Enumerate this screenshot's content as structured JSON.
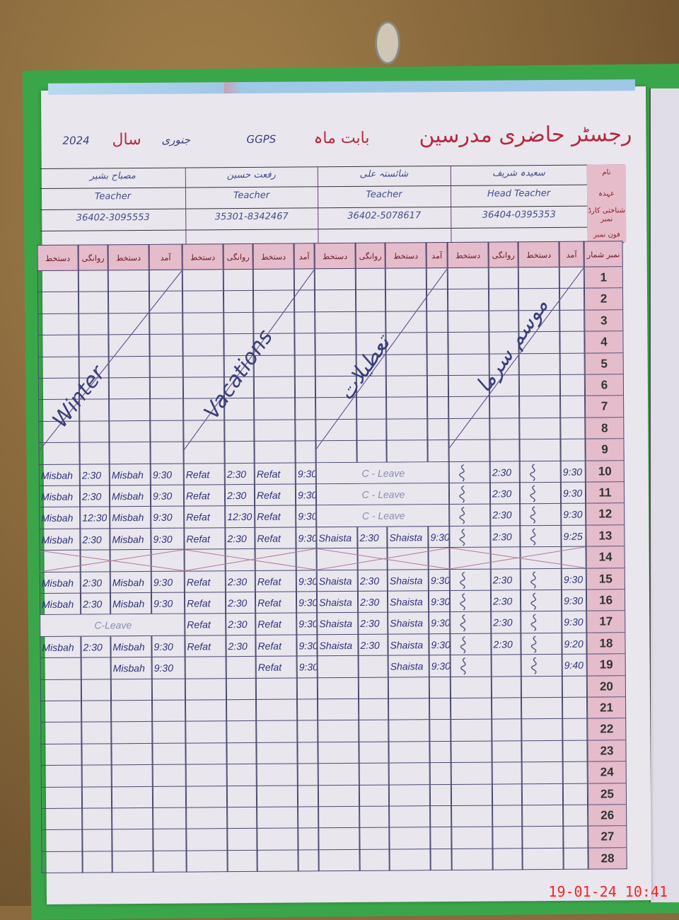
{
  "header": {
    "title": "رجسٹر حاضری مدرسین",
    "month_label": "بابت ماہ",
    "month": "جنوری",
    "year_label": "سال",
    "year": "2024",
    "school": "GGPS"
  },
  "info_labels": [
    "نام",
    "عہدہ",
    "شناختی کارڈ نمبر",
    "فون نمبر"
  ],
  "teachers": [
    {
      "name": "مصباح بشیر",
      "designation": "Teacher",
      "cnic": "36402-3095553"
    },
    {
      "name": "رفعت حسین",
      "designation": "Teacher",
      "cnic": "35301-8342467"
    },
    {
      "name": "شائستہ علی",
      "designation": "Teacher",
      "cnic": "36402-5078617"
    },
    {
      "name": "سعیدہ شریف",
      "designation": "Head Teacher",
      "cnic": "36404-0395353"
    }
  ],
  "column_headers": [
    "دستخط",
    "روانگی",
    "دستخط",
    "آمد",
    "دستخط",
    "روانگی",
    "دستخط",
    "آمد",
    "دستخط",
    "روانگی",
    "دستخط",
    "آمد",
    "دستخط",
    "روانگی",
    "دستخط",
    "آمد"
  ],
  "serial_header": "نمبر شمار",
  "vacation_notes": [
    "Winter",
    "Vacations",
    "تعطیلات",
    "موسم سرما"
  ],
  "rows": [
    {
      "num": "1",
      "cells": []
    },
    {
      "num": "2",
      "cells": []
    },
    {
      "num": "3",
      "cells": []
    },
    {
      "num": "4",
      "cells": []
    },
    {
      "num": "5",
      "cells": []
    },
    {
      "num": "6",
      "cells": []
    },
    {
      "num": "7",
      "cells": []
    },
    {
      "num": "8",
      "cells": []
    },
    {
      "num": "9",
      "cells": []
    },
    {
      "num": "10",
      "cells": [
        "Misbah",
        "2:30",
        "Misbah",
        "9:30",
        "Refat",
        "2:30",
        "Refat",
        "9:30",
        "",
        "C - Leave",
        "",
        "",
        "",
        "2:30",
        "",
        "9:30"
      ],
      "head_signed": true
    },
    {
      "num": "11",
      "cells": [
        "Misbah",
        "2:30",
        "Misbah",
        "9:30",
        "Refat",
        "2:30",
        "Refat",
        "9:30",
        "",
        "C - Leave",
        "",
        "",
        "",
        "2:30",
        "",
        "9:30"
      ],
      "head_signed": true
    },
    {
      "num": "12",
      "cells": [
        "Misbah",
        "12:30",
        "Misbah",
        "9:30",
        "Refat",
        "12:30",
        "Refat",
        "9:30",
        "",
        "C - Leave",
        "",
        "",
        "",
        "2:30",
        "",
        "9:30"
      ],
      "head_signed": true
    },
    {
      "num": "13",
      "cells": [
        "Misbah",
        "2:30",
        "Misbah",
        "9:30",
        "Refat",
        "2:30",
        "Refat",
        "9:30",
        "Shaista",
        "2:30",
        "Shaista",
        "9:30",
        "",
        "2:30",
        "",
        "9:25"
      ],
      "head_signed": true
    },
    {
      "num": "14",
      "cells": [],
      "crossed": true
    },
    {
      "num": "15",
      "cells": [
        "Misbah",
        "2:30",
        "Misbah",
        "9:30",
        "Refat",
        "2:30",
        "Refat",
        "9:30",
        "Shaista",
        "2:30",
        "Shaista",
        "9:30",
        "",
        "2:30",
        "",
        "9:30"
      ],
      "head_signed": true
    },
    {
      "num": "16",
      "cells": [
        "Misbah",
        "2:30",
        "Misbah",
        "9:30",
        "Refat",
        "2:30",
        "Refat",
        "9:30",
        "Shaista",
        "2:30",
        "Shaista",
        "9:30",
        "",
        "2:30",
        "",
        "9:30"
      ],
      "head_signed": true
    },
    {
      "num": "17",
      "cells": [
        "C-Leave",
        "",
        "",
        "",
        "Refat",
        "2:30",
        "Refat",
        "9:30",
        "Shaista",
        "2:30",
        "Shaista",
        "9:30",
        "",
        "2:30",
        "",
        "9:30"
      ],
      "head_signed": true
    },
    {
      "num": "18",
      "cells": [
        "Misbah",
        "2:30",
        "Misbah",
        "9:30",
        "Refat",
        "2:30",
        "Refat",
        "9:30",
        "Shaista",
        "2:30",
        "Shaista",
        "9:30",
        "",
        "2:30",
        "",
        "9:20"
      ],
      "head_signed": true
    },
    {
      "num": "19",
      "cells": [
        "",
        "",
        "Misbah",
        "9:30",
        "",
        "",
        "Refat",
        "9:30",
        "",
        "",
        "Shaista",
        "9:30",
        "",
        "",
        "",
        "9:40"
      ],
      "head_signed": true
    },
    {
      "num": "20",
      "cells": []
    },
    {
      "num": "21",
      "cells": []
    },
    {
      "num": "22",
      "cells": []
    },
    {
      "num": "23",
      "cells": []
    },
    {
      "num": "24",
      "cells": []
    },
    {
      "num": "25",
      "cells": []
    },
    {
      "num": "26",
      "cells": []
    },
    {
      "num": "27",
      "cells": []
    },
    {
      "num": "28",
      "cells": []
    }
  ],
  "timestamp": "19-01-24  10:41"
}
